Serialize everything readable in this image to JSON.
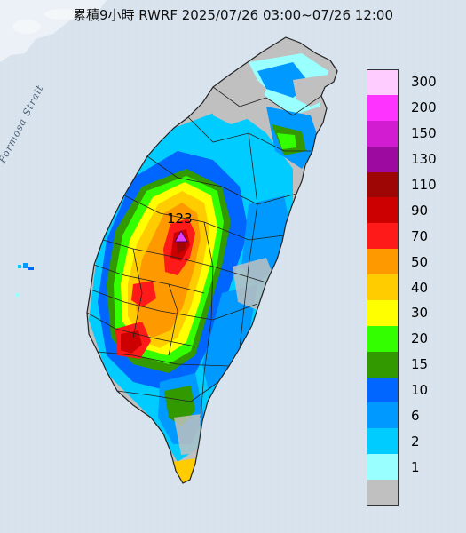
{
  "title": "累積9小時 RWRF 2025/07/26 03:00~07/26 12:00",
  "strait_label": "Formosa Strait",
  "peak": {
    "value": "123",
    "marker_color": "#e040fb"
  },
  "legend": {
    "items": [
      {
        "label": "300",
        "color": "#ffccff"
      },
      {
        "label": "200",
        "color": "#ff33ff"
      },
      {
        "label": "150",
        "color": "#d21cd2"
      },
      {
        "label": "130",
        "color": "#9c0aa0"
      },
      {
        "label": "110",
        "color": "#9e0606"
      },
      {
        "label": "90",
        "color": "#cc0000"
      },
      {
        "label": "70",
        "color": "#ff1a1a"
      },
      {
        "label": "50",
        "color": "#ff9900"
      },
      {
        "label": "40",
        "color": "#ffcc00"
      },
      {
        "label": "30",
        "color": "#ffff00"
      },
      {
        "label": "20",
        "color": "#33ff00"
      },
      {
        "label": "15",
        "color": "#339900"
      },
      {
        "label": "10",
        "color": "#0066ff"
      },
      {
        "label": "6",
        "color": "#0099ff"
      },
      {
        "label": "2",
        "color": "#00ccff"
      },
      {
        "label": "1",
        "color": "#99ffff"
      },
      {
        "label": "",
        "color": "#c0c0c0"
      }
    ]
  }
}
